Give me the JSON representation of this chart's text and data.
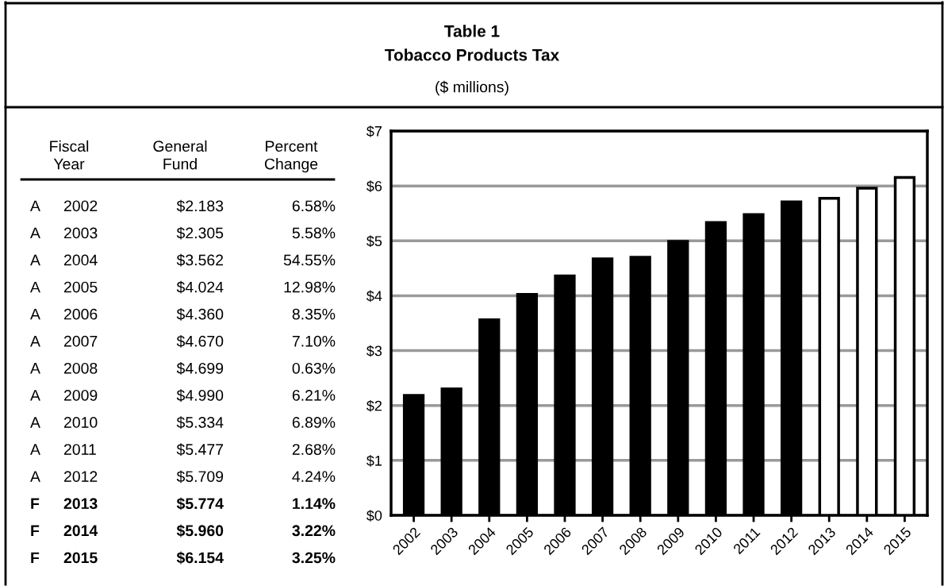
{
  "chart_data": {
    "type": "bar",
    "title": "Table 1\nTobacco Products Tax",
    "subtitle": "($ millions)",
    "categories": [
      "2002",
      "2003",
      "2004",
      "2005",
      "2006",
      "2007",
      "2008",
      "2009",
      "2010",
      "2011",
      "2012",
      "2013",
      "2014",
      "2015"
    ],
    "values": [
      2.183,
      2.305,
      3.562,
      4.024,
      4.36,
      4.67,
      4.699,
      4.99,
      5.334,
      5.477,
      5.709,
      5.774,
      5.96,
      6.154
    ],
    "colors": [
      "#000000",
      "#000000",
      "#000000",
      "#000000",
      "#000000",
      "#000000",
      "#000000",
      "#000000",
      "#000000",
      "#000000",
      "#000000",
      "#ffffff",
      "#ffffff",
      "#ffffff"
    ],
    "ylim": [
      0,
      7
    ],
    "yticks": [
      {
        "value": 0,
        "label": "$0"
      },
      {
        "value": 1,
        "label": "$1"
      },
      {
        "value": 2,
        "label": "$2"
      },
      {
        "value": 3,
        "label": "$3"
      },
      {
        "value": 4,
        "label": "$4"
      },
      {
        "value": 5,
        "label": "$5"
      },
      {
        "value": 6,
        "label": "$6"
      },
      {
        "value": 7,
        "label": "$7"
      }
    ],
    "grid": "y",
    "annotations": [
      "Fiscal\nYear",
      "General\nFund",
      "Percent\nChange",
      "A",
      "A",
      "A",
      "A",
      "A",
      "A",
      "A",
      "A",
      "A",
      "A",
      "A",
      "F",
      "F",
      "F",
      "$2.183",
      "$2.305",
      "$3.562",
      "$4.024",
      "$4.360",
      "$4.670",
      "$4.699",
      "$4.990",
      "$5.334",
      "$5.477",
      "$5.709",
      "$5.774",
      "$5.960",
      "$6.154",
      "6.58%",
      "5.58%",
      "54.55%",
      "12.98%",
      "8.35%",
      "7.10%",
      "0.63%",
      "6.21%",
      "6.89%",
      "2.68%",
      "4.24%",
      "1.14%",
      "3.22%",
      "3.25%"
    ]
  }
}
